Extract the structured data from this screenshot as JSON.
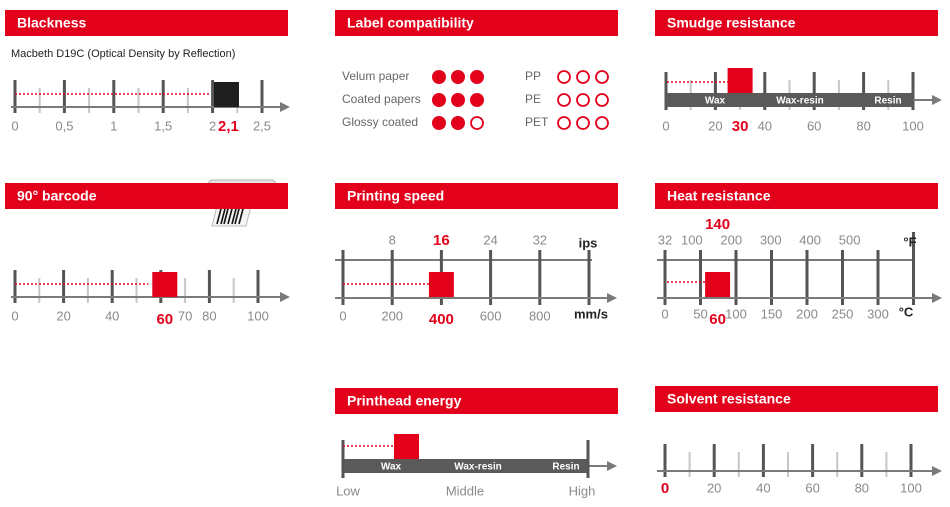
{
  "panels": {
    "blackness": {
      "title": "Blackness",
      "subtitle": "Macbeth D19C (Optical Density by Reflection)",
      "lim": [
        0,
        2.5
      ],
      "ticks": [
        0,
        {
          "value": 0.5,
          "label": "0,5"
        },
        1,
        {
          "value": 1.5,
          "label": "1,5"
        },
        2,
        {
          "value": 2.5,
          "label": "2,5"
        }
      ],
      "major_ticks": [
        0,
        0.5,
        1,
        1.5,
        2,
        2.5
      ],
      "minor_ticks": [
        0.25,
        0.75,
        1.25,
        1.75,
        2.25
      ],
      "value": {
        "value": 2.1,
        "label": "2,1"
      },
      "marker_color": "#1e1e1e"
    },
    "barcode": {
      "title": "90° barcode",
      "lim": [
        0,
        100
      ],
      "ticks": [
        0,
        20,
        40,
        70,
        80,
        100
      ],
      "major_ticks": [
        0,
        20,
        40,
        60,
        80,
        100
      ],
      "minor_ticks": [
        10,
        30,
        50,
        70,
        90
      ],
      "value": 60,
      "marker_color": "#e3001b"
    },
    "label_compatibility": {
      "title": "Label compatibility",
      "circles": 3,
      "left": [
        {
          "name": "Velum paper",
          "filled": 3
        },
        {
          "name": "Coated papers",
          "filled": 3
        },
        {
          "name": "Glossy coated",
          "filled": 2
        }
      ],
      "right": [
        {
          "name": "PP",
          "filled": 0
        },
        {
          "name": "PE",
          "filled": 0
        },
        {
          "name": "PET",
          "filled": 0
        }
      ]
    },
    "printing_speed": {
      "title": "Printing speed",
      "ips": {
        "unit": "ips",
        "lim": [
          0,
          40
        ],
        "ticks": [
          8,
          24,
          32
        ],
        "value": 16
      },
      "mms": {
        "unit": "mm/s",
        "lim": [
          0,
          1000
        ],
        "ticks": [
          0,
          200,
          600,
          800
        ],
        "value": 400
      },
      "tick_marks": [
        0,
        200,
        400,
        600,
        800,
        1000
      ]
    },
    "printhead_energy": {
      "title": "Printhead energy",
      "segments": [
        "Wax",
        "Wax-resin",
        "Resin"
      ],
      "lim": [
        0,
        1
      ],
      "scale": [
        {
          "value": 0,
          "label": "Low"
        },
        {
          "value": 0.5,
          "label": "Middle"
        },
        {
          "value": 1,
          "label": "High"
        }
      ],
      "value": 0.25
    },
    "smudge_resistance": {
      "title": "Smudge resistance",
      "segments": [
        "Wax",
        "Wax-resin",
        "Resin"
      ],
      "lim": [
        0,
        100
      ],
      "ticks": [
        0,
        20,
        40,
        60,
        80,
        100
      ],
      "major_ticks": [
        0,
        20,
        40,
        60,
        80,
        100
      ],
      "minor_ticks": [
        10,
        30,
        50,
        70,
        90
      ],
      "value": 30
    },
    "heat_resistance": {
      "title": "Heat resistance",
      "fahrenheit": {
        "unit": "°F",
        "lim": [
          32,
          572
        ],
        "ticks": [
          32,
          100,
          200,
          300,
          400,
          500
        ],
        "value": 140
      },
      "celsius": {
        "unit": "°C",
        "lim": [
          0,
          300
        ],
        "ticks": [
          0,
          50,
          100,
          150,
          200,
          250,
          300
        ],
        "value": 60
      },
      "tick_marks": [
        0,
        50,
        100,
        150,
        200,
        250,
        300,
        350
      ]
    },
    "solvent_resistance": {
      "title": "Solvent resistance",
      "lim": [
        0,
        100
      ],
      "ticks": [
        20,
        40,
        60,
        80,
        100
      ],
      "major_ticks": [
        0,
        20,
        40,
        60,
        80,
        100
      ],
      "minor_ticks": [
        10,
        30,
        50,
        70,
        90
      ],
      "value": 0
    }
  }
}
